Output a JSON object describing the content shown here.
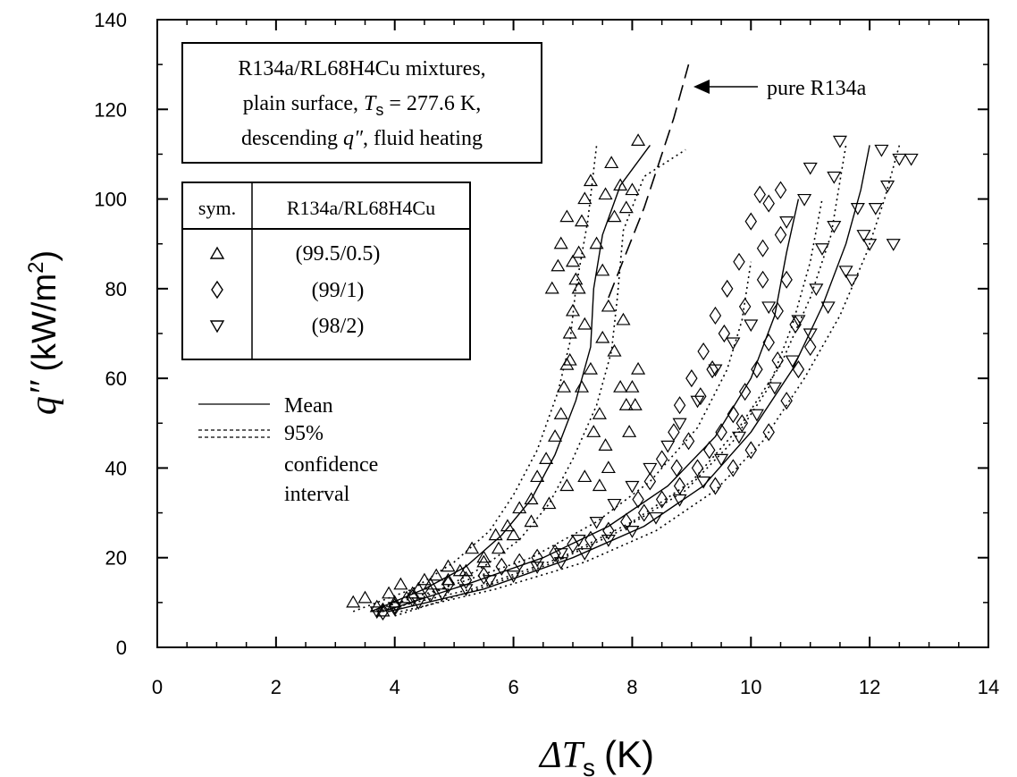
{
  "chart_data": {
    "type": "scatter",
    "xlabel": {
      "symbol": "ΔT",
      "subscript": "s",
      "unit": "(K)"
    },
    "ylabel": {
      "symbol": "q″",
      "unit": "(kW/m",
      "unit_sup": "2",
      "unit_close": ")"
    },
    "xlim": [
      0,
      14
    ],
    "ylim": [
      0,
      140
    ],
    "xticks": [
      0,
      2,
      4,
      6,
      8,
      10,
      12,
      14
    ],
    "yticks": [
      0,
      20,
      40,
      60,
      80,
      100,
      120,
      140
    ],
    "info_box": {
      "line1": "R134a/RL68H4Cu mixtures,",
      "line2_prefix": "plain surface, ",
      "line2_var": "T",
      "line2_sub": "s",
      "line2_suffix": " = 277.6 K,",
      "line3_prefix": "descending ",
      "line3_var": "q″",
      "line3_suffix": ", fluid heating"
    },
    "symbol_table": {
      "col1_header": "sym.",
      "col2_header": "R134a/RL68H4Cu",
      "rows": [
        {
          "marker": "triangle-up",
          "label": "(99.5/0.5)"
        },
        {
          "marker": "diamond",
          "label": "(99/1)"
        },
        {
          "marker": "triangle-down",
          "label": "(98/2)"
        }
      ]
    },
    "line_legend": {
      "mean": "Mean",
      "ci_line1": "95%",
      "ci_line2": "confidence",
      "ci_line3": "interval"
    },
    "annotation": "pure R134a",
    "pure_r134a_curve": [
      [
        7.6,
        78
      ],
      [
        7.9,
        88
      ],
      [
        8.2,
        98
      ],
      [
        8.45,
        108
      ],
      [
        8.7,
        118
      ],
      [
        8.95,
        130
      ]
    ],
    "series": [
      {
        "label": "(99.5/0.5)",
        "marker": "triangle-up",
        "mean": [
          [
            3.6,
            8
          ],
          [
            4.5,
            13
          ],
          [
            5.2,
            18
          ],
          [
            5.8,
            25
          ],
          [
            6.3,
            33
          ],
          [
            6.7,
            43
          ],
          [
            7.05,
            55
          ],
          [
            7.3,
            67
          ],
          [
            7.35,
            80
          ],
          [
            7.5,
            92
          ],
          [
            7.8,
            103
          ],
          [
            8.3,
            112
          ]
        ],
        "ci_upper": [
          [
            3.3,
            8
          ],
          [
            4.3,
            13
          ],
          [
            5.0,
            19
          ],
          [
            5.6,
            26
          ],
          [
            6.0,
            34
          ],
          [
            6.4,
            44
          ],
          [
            6.75,
            57
          ],
          [
            6.95,
            68
          ],
          [
            7.05,
            80
          ],
          [
            7.25,
            95
          ],
          [
            7.4,
            112
          ]
        ],
        "ci_lower": [
          [
            3.9,
            8
          ],
          [
            4.8,
            13
          ],
          [
            5.5,
            18
          ],
          [
            6.1,
            24
          ],
          [
            6.6,
            32
          ],
          [
            7.0,
            42
          ],
          [
            7.4,
            54
          ],
          [
            7.65,
            66
          ],
          [
            7.75,
            78
          ],
          [
            7.85,
            93
          ],
          [
            8.2,
            105
          ],
          [
            8.9,
            111
          ]
        ],
        "points": [
          [
            3.3,
            10
          ],
          [
            3.5,
            11
          ],
          [
            3.7,
            9
          ],
          [
            3.9,
            12
          ],
          [
            4.1,
            14
          ],
          [
            4.3,
            12
          ],
          [
            4.5,
            15
          ],
          [
            4.7,
            16
          ],
          [
            4.9,
            18
          ],
          [
            5.1,
            17
          ],
          [
            5.3,
            22
          ],
          [
            5.5,
            20
          ],
          [
            5.7,
            25
          ],
          [
            5.9,
            27
          ],
          [
            6.1,
            31
          ],
          [
            6.3,
            33
          ],
          [
            6.4,
            38
          ],
          [
            6.55,
            42
          ],
          [
            6.7,
            47
          ],
          [
            6.8,
            52
          ],
          [
            6.85,
            58
          ],
          [
            6.9,
            63
          ],
          [
            6.95,
            70
          ],
          [
            7.0,
            75
          ],
          [
            7.05,
            82
          ],
          [
            7.1,
            88
          ],
          [
            7.15,
            95
          ],
          [
            7.2,
            100
          ],
          [
            7.3,
            104
          ],
          [
            7.4,
            90
          ],
          [
            7.5,
            84
          ],
          [
            7.6,
            76
          ],
          [
            7.7,
            66
          ],
          [
            7.8,
            58
          ],
          [
            7.9,
            54
          ],
          [
            8.0,
            58
          ],
          [
            8.1,
            62
          ],
          [
            7.7,
            96
          ],
          [
            7.8,
            103
          ],
          [
            7.9,
            98
          ],
          [
            8.0,
            102
          ],
          [
            8.1,
            113
          ],
          [
            6.8,
            90
          ],
          [
            6.9,
            96
          ],
          [
            7.0,
            86
          ],
          [
            7.1,
            80
          ],
          [
            7.2,
            72
          ],
          [
            7.3,
            62
          ],
          [
            7.45,
            52
          ],
          [
            7.55,
            45
          ],
          [
            7.6,
            40
          ],
          [
            7.45,
            36
          ],
          [
            7.2,
            38
          ],
          [
            6.9,
            36
          ],
          [
            6.6,
            32
          ],
          [
            6.3,
            28
          ],
          [
            6.0,
            25
          ],
          [
            5.75,
            22
          ],
          [
            5.5,
            19
          ],
          [
            5.2,
            17
          ],
          [
            4.9,
            15
          ],
          [
            4.6,
            14
          ],
          [
            4.4,
            13
          ],
          [
            4.2,
            11
          ],
          [
            4.0,
            10
          ],
          [
            3.8,
            8
          ],
          [
            7.65,
            108
          ],
          [
            7.55,
            101
          ],
          [
            6.75,
            85
          ],
          [
            6.65,
            80
          ],
          [
            6.95,
            64
          ],
          [
            7.15,
            58
          ],
          [
            7.35,
            48
          ],
          [
            7.5,
            69
          ],
          [
            7.95,
            48
          ],
          [
            8.05,
            54
          ],
          [
            7.85,
            73
          ]
        ]
      },
      {
        "label": "(99/1)",
        "marker": "diamond",
        "mean": [
          [
            3.8,
            8
          ],
          [
            5.2,
            14
          ],
          [
            6.5,
            20
          ],
          [
            7.6,
            27
          ],
          [
            8.6,
            36
          ],
          [
            9.4,
            47
          ],
          [
            10.0,
            60
          ],
          [
            10.4,
            74
          ],
          [
            10.6,
            88
          ],
          [
            10.8,
            100
          ]
        ],
        "ci_upper": [
          [
            3.6,
            8
          ],
          [
            5.0,
            14
          ],
          [
            6.3,
            20
          ],
          [
            7.4,
            28
          ],
          [
            8.3,
            37
          ],
          [
            9.1,
            49
          ],
          [
            9.6,
            62
          ],
          [
            9.85,
            73
          ],
          [
            10.0,
            86
          ]
        ],
        "ci_lower": [
          [
            4.0,
            7
          ],
          [
            5.4,
            13
          ],
          [
            6.7,
            19
          ],
          [
            7.8,
            26
          ],
          [
            8.9,
            35
          ],
          [
            9.7,
            46
          ],
          [
            10.3,
            58
          ],
          [
            10.7,
            72
          ],
          [
            11.0,
            86
          ],
          [
            11.2,
            100
          ]
        ],
        "points": [
          [
            3.8,
            8
          ],
          [
            4.0,
            9
          ],
          [
            4.3,
            11
          ],
          [
            4.6,
            12
          ],
          [
            4.9,
            14
          ],
          [
            5.2,
            15
          ],
          [
            5.5,
            16
          ],
          [
            5.8,
            18
          ],
          [
            6.1,
            19
          ],
          [
            6.4,
            20
          ],
          [
            6.7,
            21
          ],
          [
            7.0,
            23
          ],
          [
            7.3,
            24
          ],
          [
            7.6,
            26
          ],
          [
            7.9,
            28
          ],
          [
            8.2,
            30
          ],
          [
            8.5,
            33
          ],
          [
            8.8,
            36
          ],
          [
            9.1,
            40
          ],
          [
            9.3,
            44
          ],
          [
            9.5,
            48
          ],
          [
            9.7,
            52
          ],
          [
            9.9,
            57
          ],
          [
            10.1,
            62
          ],
          [
            10.3,
            68
          ],
          [
            10.45,
            75
          ],
          [
            10.6,
            82
          ],
          [
            10.2,
            89
          ],
          [
            10.0,
            95
          ],
          [
            10.3,
            99
          ],
          [
            10.5,
            102
          ],
          [
            9.8,
            86
          ],
          [
            9.6,
            80
          ],
          [
            9.4,
            74
          ],
          [
            9.2,
            66
          ],
          [
            9.0,
            60
          ],
          [
            8.8,
            54
          ],
          [
            8.7,
            48
          ],
          [
            8.5,
            42
          ],
          [
            8.3,
            37
          ],
          [
            8.1,
            33
          ],
          [
            9.4,
            36
          ],
          [
            9.7,
            40
          ],
          [
            10.0,
            44
          ],
          [
            10.3,
            48
          ],
          [
            10.6,
            55
          ],
          [
            10.8,
            62
          ],
          [
            11.0,
            67
          ],
          [
            9.9,
            76
          ],
          [
            10.2,
            82
          ],
          [
            10.5,
            92
          ],
          [
            10.15,
            101
          ],
          [
            9.55,
            70
          ],
          [
            9.35,
            62
          ],
          [
            9.15,
            56
          ],
          [
            8.95,
            46
          ],
          [
            8.75,
            40
          ],
          [
            9.85,
            50
          ],
          [
            10.45,
            64
          ],
          [
            10.75,
            72
          ]
        ]
      },
      {
        "label": "(98/2)",
        "marker": "triangle-down",
        "mean": [
          [
            3.9,
            8
          ],
          [
            5.5,
            13
          ],
          [
            7.0,
            20
          ],
          [
            8.2,
            27
          ],
          [
            9.2,
            36
          ],
          [
            10.0,
            48
          ],
          [
            10.7,
            62
          ],
          [
            11.2,
            76
          ],
          [
            11.6,
            90
          ],
          [
            11.85,
            102
          ],
          [
            12.0,
            112
          ]
        ],
        "ci_upper": [
          [
            3.7,
            8
          ],
          [
            5.3,
            13
          ],
          [
            6.8,
            20
          ],
          [
            8.0,
            28
          ],
          [
            9.0,
            37
          ],
          [
            9.8,
            49
          ],
          [
            10.5,
            63
          ],
          [
            11.0,
            78
          ],
          [
            11.35,
            92
          ],
          [
            11.5,
            104
          ],
          [
            11.6,
            112
          ]
        ],
        "ci_lower": [
          [
            4.1,
            8
          ],
          [
            5.7,
            13
          ],
          [
            7.2,
            19
          ],
          [
            8.4,
            26
          ],
          [
            9.4,
            35
          ],
          [
            10.2,
            46
          ],
          [
            10.9,
            60
          ],
          [
            11.5,
            74
          ],
          [
            11.95,
            88
          ],
          [
            12.25,
            100
          ],
          [
            12.5,
            112
          ]
        ],
        "points": [
          [
            3.7,
            8
          ],
          [
            4.0,
            9
          ],
          [
            4.4,
            10
          ],
          [
            4.8,
            12
          ],
          [
            5.2,
            13
          ],
          [
            5.6,
            15
          ],
          [
            6.0,
            16
          ],
          [
            6.4,
            18
          ],
          [
            6.8,
            19
          ],
          [
            7.2,
            21
          ],
          [
            7.6,
            24
          ],
          [
            8.0,
            26
          ],
          [
            8.4,
            29
          ],
          [
            8.8,
            33
          ],
          [
            9.2,
            37
          ],
          [
            9.5,
            42
          ],
          [
            9.8,
            47
          ],
          [
            10.1,
            52
          ],
          [
            10.4,
            58
          ],
          [
            10.7,
            64
          ],
          [
            11.0,
            70
          ],
          [
            11.3,
            76
          ],
          [
            11.6,
            84
          ],
          [
            11.9,
            92
          ],
          [
            12.1,
            98
          ],
          [
            12.3,
            103
          ],
          [
            12.5,
            109
          ],
          [
            11.0,
            107
          ],
          [
            11.4,
            105
          ],
          [
            10.9,
            100
          ],
          [
            10.6,
            95
          ],
          [
            11.2,
            89
          ],
          [
            11.7,
            82
          ],
          [
            12.0,
            90
          ],
          [
            12.4,
            90
          ],
          [
            11.5,
            113
          ],
          [
            12.2,
            111
          ],
          [
            10.3,
            76
          ],
          [
            10.0,
            72
          ],
          [
            9.7,
            68
          ],
          [
            9.4,
            62
          ],
          [
            9.1,
            55
          ],
          [
            8.8,
            50
          ],
          [
            8.6,
            45
          ],
          [
            8.3,
            40
          ],
          [
            8.0,
            36
          ],
          [
            7.7,
            32
          ],
          [
            7.4,
            28
          ],
          [
            7.1,
            24
          ],
          [
            6.8,
            21
          ],
          [
            10.8,
            73
          ],
          [
            11.1,
            80
          ],
          [
            11.4,
            94
          ],
          [
            11.8,
            98
          ],
          [
            12.7,
            109
          ]
        ]
      }
    ]
  }
}
